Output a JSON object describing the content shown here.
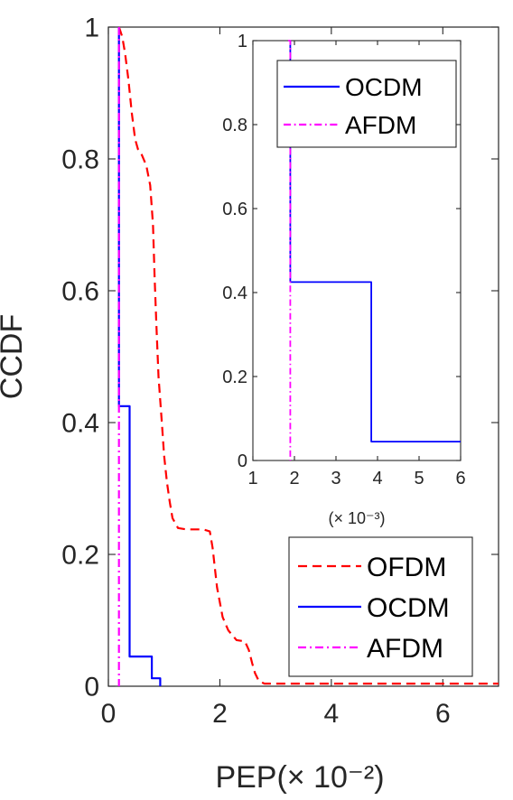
{
  "chart_data": [
    {
      "type": "line",
      "xlabel": "PEP(× 10⁻²)",
      "ylabel": "CCDF",
      "xlim": [
        0,
        7
      ],
      "ylim": [
        0,
        1
      ],
      "xticks": [
        "0",
        "2",
        "4",
        "6"
      ],
      "xtick_values": [
        0,
        2,
        4,
        6
      ],
      "yticks": [
        "0",
        "0.2",
        "0.4",
        "0.6",
        "0.8",
        "1"
      ],
      "ytick_values": [
        0,
        0.2,
        0.4,
        0.6,
        0.8,
        1
      ],
      "grid": false,
      "legend": "bottom-right",
      "series": [
        {
          "name": "OFDM",
          "color": "#ff0000",
          "style": "dashed",
          "x": [
            0.19,
            0.21,
            0.25,
            0.3,
            0.36,
            0.42,
            0.48,
            0.53,
            0.58,
            0.63,
            0.68,
            0.75,
            0.8,
            0.83,
            0.86,
            0.9,
            0.96,
            1.0,
            1.05,
            1.1,
            1.15,
            1.25,
            1.4,
            1.55,
            1.7,
            1.82,
            1.87,
            1.95,
            2.05,
            2.15,
            2.3,
            2.45,
            2.52,
            2.58,
            2.63,
            2.7,
            2.8,
            3.0,
            4.0,
            5.0,
            6.0,
            7.0
          ],
          "y": [
            1.0,
            0.995,
            0.985,
            0.96,
            0.92,
            0.87,
            0.83,
            0.815,
            0.81,
            0.8,
            0.79,
            0.76,
            0.7,
            0.62,
            0.55,
            0.47,
            0.4,
            0.35,
            0.31,
            0.28,
            0.255,
            0.24,
            0.238,
            0.238,
            0.238,
            0.235,
            0.21,
            0.15,
            0.105,
            0.085,
            0.07,
            0.068,
            0.055,
            0.035,
            0.02,
            0.008,
            0.004,
            0.004,
            0.004,
            0.004,
            0.004,
            0.004
          ]
        },
        {
          "name": "OCDM",
          "color": "#0000ff",
          "style": "solid",
          "x": [
            0.19,
            0.19,
            0.38,
            0.38,
            0.78,
            0.78,
            0.93,
            0.93
          ],
          "y": [
            1.0,
            0.425,
            0.425,
            0.045,
            0.045,
            0.012,
            0.012,
            0.0
          ]
        },
        {
          "name": "AFDM",
          "color": "#ff00ff",
          "style": "dashdot",
          "x": [
            0.19,
            0.19
          ],
          "y": [
            1.0,
            0.0
          ]
        }
      ]
    },
    {
      "type": "line",
      "xlabel": "(× 10⁻³)",
      "ylabel": "",
      "xlim": [
        1,
        6
      ],
      "ylim": [
        0,
        1
      ],
      "xticks": [
        "1",
        "2",
        "3",
        "4",
        "5",
        "6"
      ],
      "xtick_values": [
        1,
        2,
        3,
        4,
        5,
        6
      ],
      "yticks": [
        "0",
        "0.2",
        "0.4",
        "0.6",
        "0.8",
        "1"
      ],
      "ytick_values": [
        0,
        0.2,
        0.4,
        0.6,
        0.8,
        1
      ],
      "grid": false,
      "legend": "top-right",
      "series": [
        {
          "name": "OCDM",
          "color": "#0000ff",
          "style": "solid",
          "x": [
            1.9,
            1.9,
            3.85,
            3.85,
            6.0
          ],
          "y": [
            1.0,
            0.425,
            0.425,
            0.045,
            0.045
          ]
        },
        {
          "name": "AFDM",
          "color": "#ff00ff",
          "style": "dashdot",
          "x": [
            1.85,
            1.85,
            1.9,
            1.9
          ],
          "y": [
            1.0,
            1.0,
            1.0,
            0.0
          ]
        }
      ]
    }
  ]
}
